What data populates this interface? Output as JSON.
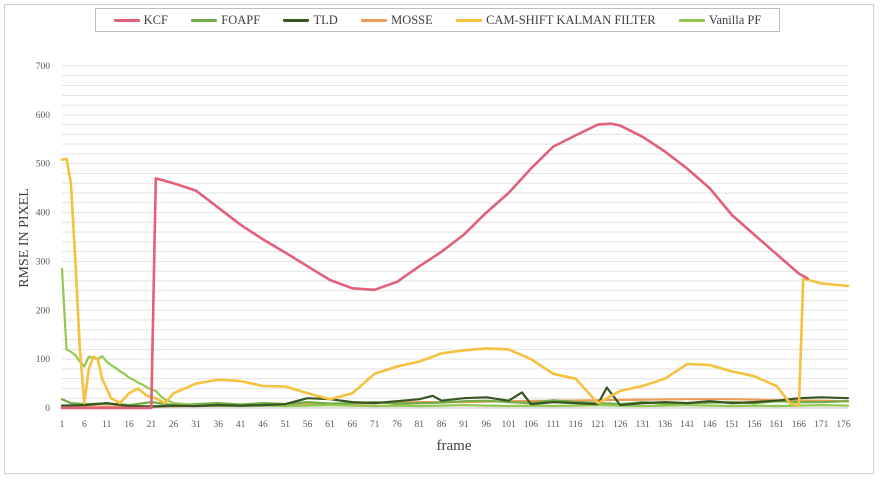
{
  "chart_data": {
    "type": "line",
    "xlabel": "frame",
    "ylabel": "RMSE IN PIXEL",
    "ylim": [
      0,
      700
    ],
    "y_ticks": [
      0,
      100,
      200,
      300,
      400,
      500,
      600,
      700
    ],
    "x_ticks": [
      1,
      6,
      11,
      16,
      21,
      26,
      31,
      36,
      41,
      46,
      51,
      56,
      61,
      66,
      71,
      76,
      81,
      86,
      91,
      96,
      101,
      106,
      111,
      116,
      121,
      126,
      131,
      136,
      141,
      146,
      151,
      156,
      161,
      166,
      171,
      176
    ],
    "xlim": [
      1,
      177
    ],
    "grid": "horizontal",
    "legend_position": "top",
    "series": [
      {
        "name": "KCF",
        "color": "#e2607a",
        "points": [
          [
            1,
            0
          ],
          [
            21,
            0
          ],
          [
            22,
            470
          ],
          [
            26,
            460
          ],
          [
            31,
            445
          ],
          [
            36,
            410
          ],
          [
            41,
            375
          ],
          [
            46,
            345
          ],
          [
            51,
            318
          ],
          [
            56,
            290
          ],
          [
            61,
            262
          ],
          [
            66,
            245
          ],
          [
            71,
            242
          ],
          [
            76,
            258
          ],
          [
            81,
            290
          ],
          [
            86,
            320
          ],
          [
            91,
            355
          ],
          [
            96,
            400
          ],
          [
            101,
            440
          ],
          [
            106,
            490
          ],
          [
            111,
            535
          ],
          [
            116,
            558
          ],
          [
            121,
            580
          ],
          [
            124,
            582
          ],
          [
            126,
            578
          ],
          [
            131,
            555
          ],
          [
            136,
            525
          ],
          [
            141,
            490
          ],
          [
            146,
            450
          ],
          [
            151,
            395
          ],
          [
            156,
            355
          ],
          [
            161,
            315
          ],
          [
            166,
            275
          ],
          [
            168,
            265
          ]
        ]
      },
      {
        "name": "FOAPF",
        "color": "#70ad47",
        "points": [
          [
            1,
            18
          ],
          [
            3,
            10
          ],
          [
            6,
            8
          ],
          [
            11,
            9
          ],
          [
            16,
            6
          ],
          [
            21,
            12
          ],
          [
            26,
            6
          ],
          [
            31,
            8
          ],
          [
            36,
            10
          ],
          [
            41,
            7
          ],
          [
            46,
            10
          ],
          [
            51,
            8
          ],
          [
            56,
            12
          ],
          [
            61,
            9
          ],
          [
            66,
            10
          ],
          [
            71,
            12
          ],
          [
            76,
            9
          ],
          [
            81,
            10
          ],
          [
            86,
            11
          ],
          [
            91,
            14
          ],
          [
            96,
            15
          ],
          [
            101,
            12
          ],
          [
            106,
            10
          ],
          [
            111,
            16
          ],
          [
            116,
            12
          ],
          [
            121,
            10
          ],
          [
            126,
            8
          ],
          [
            131,
            12
          ],
          [
            136,
            9
          ],
          [
            141,
            10
          ],
          [
            146,
            11
          ],
          [
            151,
            12
          ],
          [
            156,
            10
          ],
          [
            161,
            14
          ],
          [
            166,
            12
          ],
          [
            171,
            12
          ],
          [
            177,
            14
          ]
        ]
      },
      {
        "name": "TLD",
        "color": "#375623",
        "points": [
          [
            1,
            5
          ],
          [
            6,
            6
          ],
          [
            11,
            10
          ],
          [
            16,
            4
          ],
          [
            21,
            3
          ],
          [
            26,
            5
          ],
          [
            31,
            4
          ],
          [
            36,
            6
          ],
          [
            41,
            5
          ],
          [
            46,
            6
          ],
          [
            51,
            8
          ],
          [
            56,
            20
          ],
          [
            61,
            18
          ],
          [
            66,
            12
          ],
          [
            71,
            10
          ],
          [
            76,
            14
          ],
          [
            81,
            18
          ],
          [
            84,
            25
          ],
          [
            86,
            15
          ],
          [
            91,
            20
          ],
          [
            96,
            22
          ],
          [
            101,
            15
          ],
          [
            104,
            32
          ],
          [
            106,
            8
          ],
          [
            111,
            12
          ],
          [
            116,
            10
          ],
          [
            121,
            8
          ],
          [
            123,
            42
          ],
          [
            126,
            6
          ],
          [
            131,
            10
          ],
          [
            136,
            12
          ],
          [
            141,
            10
          ],
          [
            146,
            14
          ],
          [
            151,
            10
          ],
          [
            156,
            12
          ],
          [
            161,
            15
          ],
          [
            166,
            20
          ],
          [
            171,
            22
          ],
          [
            177,
            20
          ]
        ]
      },
      {
        "name": "MOSSE",
        "color": "#ed9c5a",
        "points": [
          [
            1,
            2
          ],
          [
            11,
            3
          ],
          [
            21,
            3
          ],
          [
            31,
            4
          ],
          [
            41,
            5
          ],
          [
            51,
            6
          ],
          [
            61,
            8
          ],
          [
            71,
            10
          ],
          [
            81,
            12
          ],
          [
            91,
            12
          ],
          [
            101,
            14
          ],
          [
            111,
            15
          ],
          [
            121,
            16
          ],
          [
            131,
            17
          ],
          [
            141,
            18
          ],
          [
            151,
            18
          ],
          [
            161,
            16
          ],
          [
            171,
            15
          ],
          [
            177,
            14
          ]
        ]
      },
      {
        "name": "CAM-SHIFT KALMAN FILTER",
        "color": "#f5c13e",
        "points": [
          [
            1,
            508
          ],
          [
            2,
            510
          ],
          [
            3,
            460
          ],
          [
            4,
            300
          ],
          [
            5,
            120
          ],
          [
            6,
            10
          ],
          [
            7,
            80
          ],
          [
            8,
            105
          ],
          [
            9,
            100
          ],
          [
            10,
            60
          ],
          [
            12,
            20
          ],
          [
            14,
            10
          ],
          [
            16,
            30
          ],
          [
            18,
            40
          ],
          [
            20,
            25
          ],
          [
            22,
            20
          ],
          [
            24,
            10
          ],
          [
            26,
            30
          ],
          [
            31,
            50
          ],
          [
            36,
            58
          ],
          [
            41,
            55
          ],
          [
            46,
            45
          ],
          [
            51,
            44
          ],
          [
            56,
            30
          ],
          [
            61,
            18
          ],
          [
            66,
            30
          ],
          [
            71,
            70
          ],
          [
            76,
            85
          ],
          [
            81,
            95
          ],
          [
            86,
            112
          ],
          [
            91,
            118
          ],
          [
            96,
            122
          ],
          [
            101,
            120
          ],
          [
            106,
            100
          ],
          [
            111,
            70
          ],
          [
            116,
            60
          ],
          [
            121,
            10
          ],
          [
            126,
            35
          ],
          [
            131,
            45
          ],
          [
            136,
            60
          ],
          [
            141,
            90
          ],
          [
            146,
            88
          ],
          [
            151,
            75
          ],
          [
            156,
            65
          ],
          [
            161,
            45
          ],
          [
            164,
            10
          ],
          [
            166,
            5
          ],
          [
            167,
            265
          ],
          [
            171,
            255
          ],
          [
            177,
            250
          ]
        ]
      },
      {
        "name": "Vanilla PF",
        "color": "#92c850",
        "points": [
          [
            1,
            285
          ],
          [
            2,
            120
          ],
          [
            3,
            115
          ],
          [
            4,
            108
          ],
          [
            5,
            95
          ],
          [
            6,
            85
          ],
          [
            7,
            105
          ],
          [
            8,
            102
          ],
          [
            9,
            100
          ],
          [
            10,
            106
          ],
          [
            11,
            95
          ],
          [
            12,
            88
          ],
          [
            13,
            82
          ],
          [
            14,
            75
          ],
          [
            15,
            70
          ],
          [
            16,
            62
          ],
          [
            17,
            58
          ],
          [
            18,
            52
          ],
          [
            19,
            48
          ],
          [
            20,
            42
          ],
          [
            21,
            38
          ],
          [
            22,
            35
          ],
          [
            23,
            25
          ],
          [
            24,
            18
          ],
          [
            26,
            10
          ],
          [
            31,
            6
          ],
          [
            36,
            5
          ],
          [
            41,
            4
          ],
          [
            46,
            5
          ],
          [
            51,
            4
          ],
          [
            56,
            5
          ],
          [
            61,
            6
          ],
          [
            66,
            5
          ],
          [
            71,
            4
          ],
          [
            76,
            5
          ],
          [
            81,
            4
          ],
          [
            86,
            5
          ],
          [
            91,
            6
          ],
          [
            96,
            5
          ],
          [
            101,
            4
          ],
          [
            106,
            5
          ],
          [
            111,
            4
          ],
          [
            116,
            5
          ],
          [
            121,
            6
          ],
          [
            126,
            5
          ],
          [
            131,
            4
          ],
          [
            136,
            5
          ],
          [
            141,
            6
          ],
          [
            146,
            5
          ],
          [
            151,
            4
          ],
          [
            156,
            5
          ],
          [
            161,
            4
          ],
          [
            166,
            5
          ],
          [
            171,
            6
          ],
          [
            177,
            5
          ]
        ]
      }
    ]
  }
}
